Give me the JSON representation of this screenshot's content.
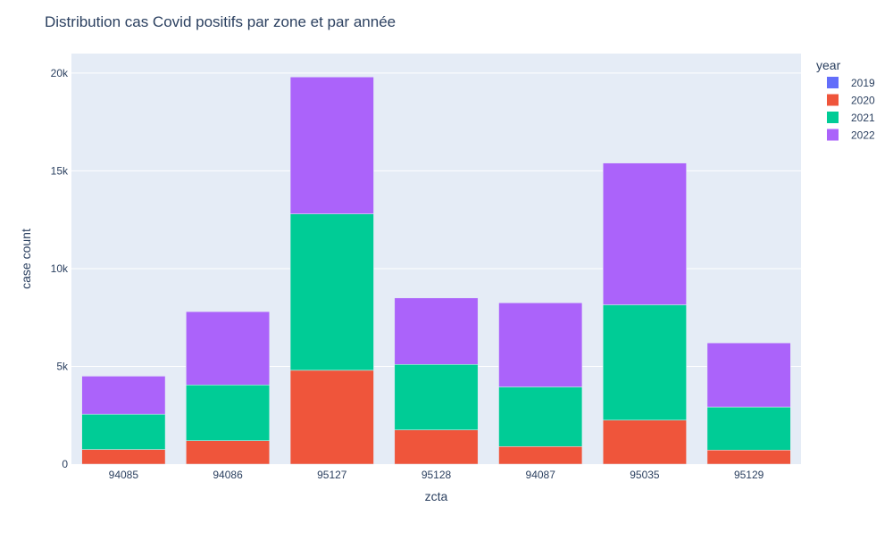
{
  "chart_data": {
    "type": "bar",
    "barmode": "stack",
    "title": "Distribution cas Covid positifs par zone et par année",
    "xlabel": "zcta",
    "ylabel": "case count",
    "ylim": [
      0,
      21000
    ],
    "yticks": [
      0,
      5000,
      10000,
      15000,
      20000
    ],
    "ytick_labels": [
      "0",
      "5k",
      "10k",
      "15k",
      "20k"
    ],
    "grid": true,
    "legend": {
      "title": "year",
      "placement": "top-right"
    },
    "categories": [
      "94085",
      "94086",
      "95127",
      "95128",
      "94087",
      "95035",
      "95129"
    ],
    "series": [
      {
        "name": "2019",
        "color": "#636efa",
        "values": [
          0,
          0,
          0,
          0,
          0,
          0,
          0
        ]
      },
      {
        "name": "2020",
        "color": "#ef553b",
        "values": [
          750,
          1200,
          4800,
          1750,
          900,
          2250,
          720
        ]
      },
      {
        "name": "2021",
        "color": "#00cc96",
        "values": [
          1800,
          2850,
          8000,
          3350,
          3050,
          5900,
          2200
        ]
      },
      {
        "name": "2022",
        "color": "#ab63fa",
        "values": [
          1950,
          3750,
          7000,
          3400,
          4300,
          7250,
          3280
        ]
      }
    ]
  },
  "colors": {
    "plot_background": "#e5ecf6",
    "gridline": "#ffffff",
    "text": "#2a3f5f"
  }
}
